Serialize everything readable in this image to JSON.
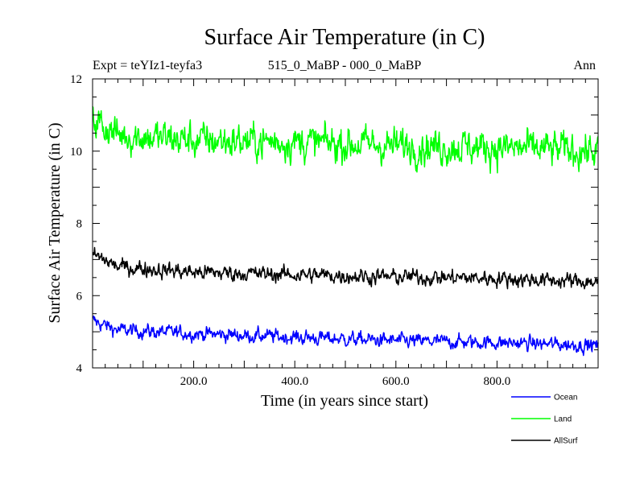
{
  "chart_data": {
    "type": "line",
    "title": "Surface Air Temperature (in C)",
    "subtitle_left": "Expt = teYIz1-teyfa3",
    "subtitle_center": "515_0_MaBP - 000_0_MaBP",
    "subtitle_right": "Ann",
    "xlabel": "Time (in years since start)",
    "ylabel": "Surface Air Temperature (in C)",
    "xlim": [
      0,
      1000
    ],
    "ylim": [
      4,
      12
    ],
    "xticks": [
      200,
      400,
      600,
      800
    ],
    "xtick_labels": [
      "200.0",
      "400.0",
      "600.0",
      "800.0"
    ],
    "yticks": [
      4,
      6,
      8,
      10,
      12
    ],
    "ytick_labels": [
      "4",
      "6",
      "8",
      "10",
      "12"
    ],
    "n_points": 1000,
    "noise_seed": 12345,
    "series": [
      {
        "name": "Ocean",
        "color": "#0000ff",
        "trend": [
          [
            0,
            5.3
          ],
          [
            50,
            5.05
          ],
          [
            200,
            4.95
          ],
          [
            400,
            4.85
          ],
          [
            600,
            4.75
          ],
          [
            800,
            4.7
          ],
          [
            1000,
            4.62
          ]
        ],
        "noise": 0.18
      },
      {
        "name": "Land",
        "color": "#00ff00",
        "trend": [
          [
            0,
            10.9
          ],
          [
            50,
            10.45
          ],
          [
            200,
            10.3
          ],
          [
            400,
            10.25
          ],
          [
            600,
            10.15
          ],
          [
            800,
            10.1
          ],
          [
            1000,
            10.0
          ]
        ],
        "noise": 0.45
      },
      {
        "name": "AllSurf",
        "color": "#000000",
        "trend": [
          [
            0,
            7.15
          ],
          [
            50,
            6.8
          ],
          [
            200,
            6.65
          ],
          [
            400,
            6.58
          ],
          [
            600,
            6.52
          ],
          [
            800,
            6.48
          ],
          [
            1000,
            6.38
          ]
        ],
        "noise": 0.2
      }
    ],
    "legend_position": "bottom-right"
  }
}
